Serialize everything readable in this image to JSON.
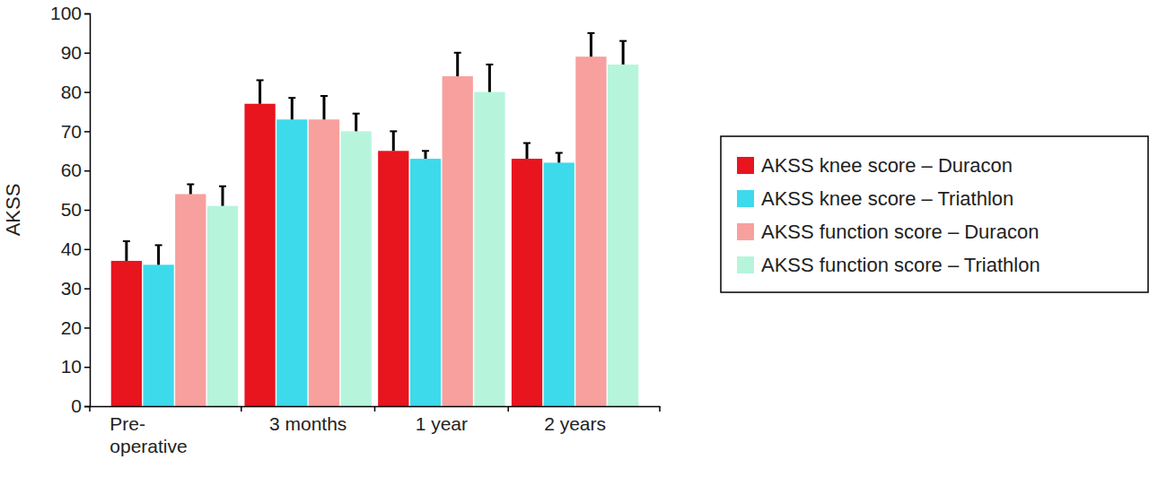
{
  "chart_data": {
    "type": "bar",
    "y_label": "AKSS",
    "categories": [
      "Pre-\noperative",
      "3 months",
      "1 year",
      "2 years"
    ],
    "series": [
      {
        "name": "AKSS knee score – Duracon",
        "color": "#e8141e",
        "values": [
          37,
          77,
          65,
          63
        ],
        "errors": [
          5,
          6,
          5,
          4
        ]
      },
      {
        "name": "AKSS knee score – Triathlon",
        "color": "#3ddaec",
        "values": [
          36,
          73,
          63,
          62
        ],
        "errors": [
          5,
          5.5,
          2,
          2.5
        ]
      },
      {
        "name": "AKSS function score – Duracon",
        "color": "#f7a09e",
        "values": [
          54,
          73,
          84,
          89
        ],
        "errors": [
          2.5,
          6,
          6,
          6
        ]
      },
      {
        "name": "AKSS function score – Triathlon",
        "color": "#b6f5dc",
        "values": [
          51,
          70,
          80,
          87
        ],
        "errors": [
          5,
          4.5,
          7,
          6
        ]
      }
    ],
    "ylim": [
      0,
      100
    ],
    "yticks": [
      0,
      10,
      20,
      30,
      40,
      50,
      60,
      70,
      80,
      90,
      100
    ],
    "grid": false,
    "legend": "right"
  }
}
